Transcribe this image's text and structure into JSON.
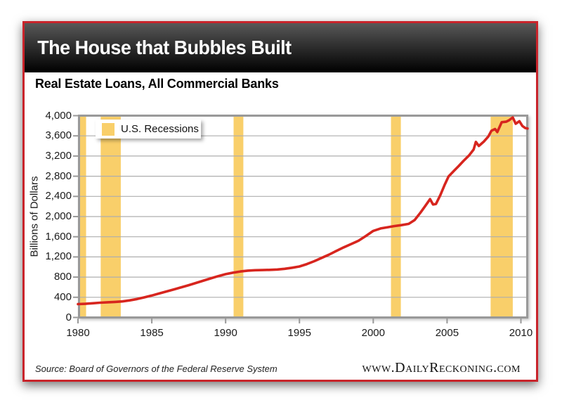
{
  "header": {
    "title": "The House that Bubbles Built"
  },
  "chart": {
    "subtitle": "Real Estate Loans, All Commercial Banks",
    "legend_label": "U.S. Recessions"
  },
  "footer": {
    "source": "Source: Board of Governors of the Federal Reserve System",
    "website": "www.DailyReckoning.com"
  },
  "colors": {
    "card_border_red": "#c9242b",
    "line_red": "#d7251e",
    "recession_yellow": "#f9cf6a",
    "plot_border_gray": "#999999",
    "gridline_gray": "#aeaeae",
    "titlebar_black": "#000000"
  },
  "chart_data": {
    "type": "line",
    "title": "Real Estate Loans, All Commercial Banks",
    "xlabel": "",
    "ylabel": "Billions of Dollars",
    "xlim": [
      1980,
      2010.5
    ],
    "ylim": [
      0,
      4000
    ],
    "x_ticks": [
      1980,
      1985,
      1990,
      1995,
      2000,
      2005,
      2010
    ],
    "y_ticks": [
      0,
      400,
      800,
      1200,
      1600,
      2000,
      2400,
      2800,
      3200,
      3600,
      4000
    ],
    "grid": true,
    "legend_position": "top-left",
    "legend": [
      {
        "label": "U.S. Recessions",
        "color": "#f9cf6a"
      }
    ],
    "recession_bands": [
      [
        1980.0,
        1980.55
      ],
      [
        1981.54,
        1982.9
      ],
      [
        1990.54,
        1991.2
      ],
      [
        2001.2,
        2001.87
      ],
      [
        2007.95,
        2009.45
      ]
    ],
    "series": [
      {
        "name": "Real Estate Loans, All Commercial Banks",
        "color": "#d7251e",
        "points": [
          [
            1980.0,
            265
          ],
          [
            1980.5,
            271
          ],
          [
            1981.0,
            282
          ],
          [
            1981.5,
            292
          ],
          [
            1982.0,
            301
          ],
          [
            1982.5,
            308
          ],
          [
            1983.0,
            318
          ],
          [
            1983.5,
            338
          ],
          [
            1984.0,
            365
          ],
          [
            1984.5,
            398
          ],
          [
            1985.0,
            435
          ],
          [
            1985.5,
            475
          ],
          [
            1986.0,
            515
          ],
          [
            1986.5,
            556
          ],
          [
            1987.0,
            598
          ],
          [
            1987.5,
            640
          ],
          [
            1988.0,
            685
          ],
          [
            1988.5,
            730
          ],
          [
            1989.0,
            775
          ],
          [
            1989.5,
            820
          ],
          [
            1990.0,
            858
          ],
          [
            1990.5,
            888
          ],
          [
            1991.0,
            912
          ],
          [
            1991.5,
            928
          ],
          [
            1992.0,
            936
          ],
          [
            1992.5,
            940
          ],
          [
            1993.0,
            944
          ],
          [
            1993.5,
            950
          ],
          [
            1994.0,
            965
          ],
          [
            1994.5,
            985
          ],
          [
            1995.0,
            1010
          ],
          [
            1995.5,
            1058
          ],
          [
            1996.0,
            1115
          ],
          [
            1996.5,
            1180
          ],
          [
            1997.0,
            1245
          ],
          [
            1997.5,
            1318
          ],
          [
            1998.0,
            1390
          ],
          [
            1998.5,
            1455
          ],
          [
            1999.0,
            1520
          ],
          [
            1999.5,
            1615
          ],
          [
            2000.0,
            1715
          ],
          [
            2000.5,
            1765
          ],
          [
            2001.0,
            1790
          ],
          [
            2001.4,
            1810
          ],
          [
            2001.9,
            1830
          ],
          [
            2002.4,
            1855
          ],
          [
            2002.8,
            1930
          ],
          [
            2003.2,
            2080
          ],
          [
            2003.5,
            2200
          ],
          [
            2003.85,
            2345
          ],
          [
            2004.05,
            2240
          ],
          [
            2004.25,
            2250
          ],
          [
            2004.55,
            2430
          ],
          [
            2004.85,
            2640
          ],
          [
            2005.1,
            2795
          ],
          [
            2005.5,
            2915
          ],
          [
            2005.8,
            3005
          ],
          [
            2006.1,
            3100
          ],
          [
            2006.5,
            3215
          ],
          [
            2006.8,
            3330
          ],
          [
            2006.95,
            3480
          ],
          [
            2007.15,
            3400
          ],
          [
            2007.5,
            3490
          ],
          [
            2007.8,
            3590
          ],
          [
            2008.0,
            3700
          ],
          [
            2008.25,
            3735
          ],
          [
            2008.4,
            3675
          ],
          [
            2008.7,
            3870
          ],
          [
            2009.0,
            3880
          ],
          [
            2009.2,
            3910
          ],
          [
            2009.45,
            3965
          ],
          [
            2009.65,
            3840
          ],
          [
            2009.9,
            3890
          ],
          [
            2010.1,
            3795
          ],
          [
            2010.3,
            3755
          ],
          [
            2010.45,
            3745
          ]
        ]
      }
    ]
  }
}
